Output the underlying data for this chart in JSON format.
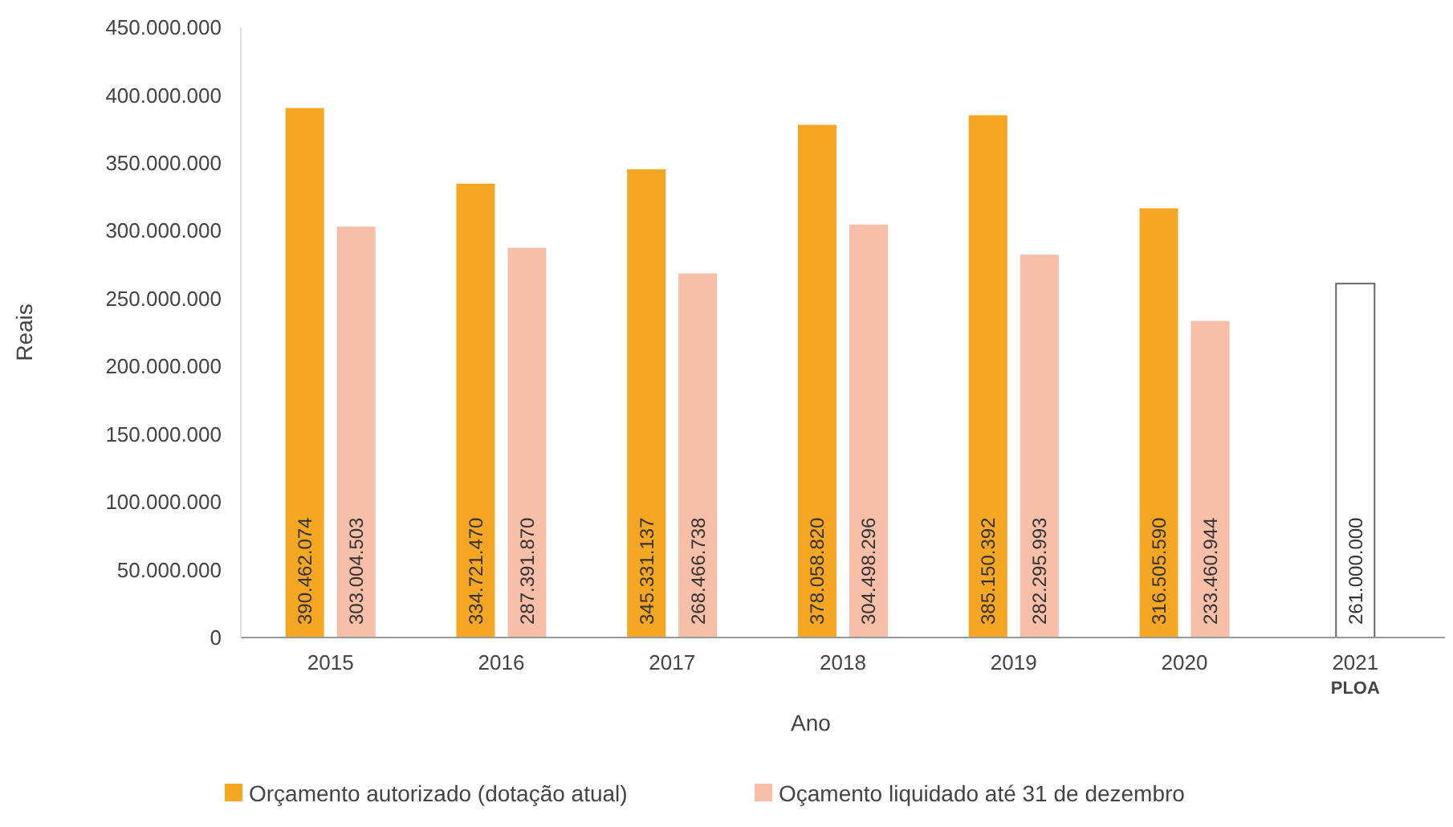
{
  "chart_data": {
    "type": "bar",
    "xlabel": "Ano",
    "ylabel": "Reais",
    "categories": [
      "2015",
      "2016",
      "2017",
      "2018",
      "2019",
      "2020",
      "2021\nPLOA"
    ],
    "series": [
      {
        "name": "Orçamento autorizado (dotação atual)",
        "color": "#f5a623",
        "values": [
          390462074,
          334721470,
          345331137,
          378058820,
          385150392,
          316505590,
          null
        ],
        "value_labels": [
          "390.462.074",
          "334.721.470",
          "345.331.137",
          "378.058.820",
          "385.150.392",
          "316.505.590",
          null
        ]
      },
      {
        "name": "Oçamento liquidado até 31 de dezembro",
        "color": "#f7bfa8",
        "values": [
          303004503,
          287391870,
          268466738,
          304498296,
          282295993,
          233460944,
          null
        ],
        "value_labels": [
          "303.004.503",
          "287.391.870",
          "268.466.738",
          "304.498.296",
          "282.295.993",
          "233.460.944",
          null
        ]
      },
      {
        "color": "#ffffff",
        "values": [
          null,
          null,
          null,
          null,
          null,
          null,
          261000000
        ],
        "value_labels": [
          null,
          null,
          null,
          null,
          null,
          null,
          "261.000.000"
        ]
      }
    ],
    "ylim": [
      0,
      450000000
    ],
    "yticks": [
      {
        "value": 0,
        "label": "0"
      },
      {
        "value": 50000000,
        "label": "50.000.000"
      },
      {
        "value": 100000000,
        "label": "100.000.000"
      },
      {
        "value": 150000000,
        "label": "150.000.000"
      },
      {
        "value": 200000000,
        "label": "200.000.000"
      },
      {
        "value": 250000000,
        "label": "250.000.000"
      },
      {
        "value": 300000000,
        "label": "300.000.000"
      },
      {
        "value": 350000000,
        "label": "350.000.000"
      },
      {
        "value": 400000000,
        "label": "400.000.000"
      },
      {
        "value": 450000000,
        "label": "450.000.000"
      }
    ],
    "grid": false,
    "legend": "bottom"
  }
}
